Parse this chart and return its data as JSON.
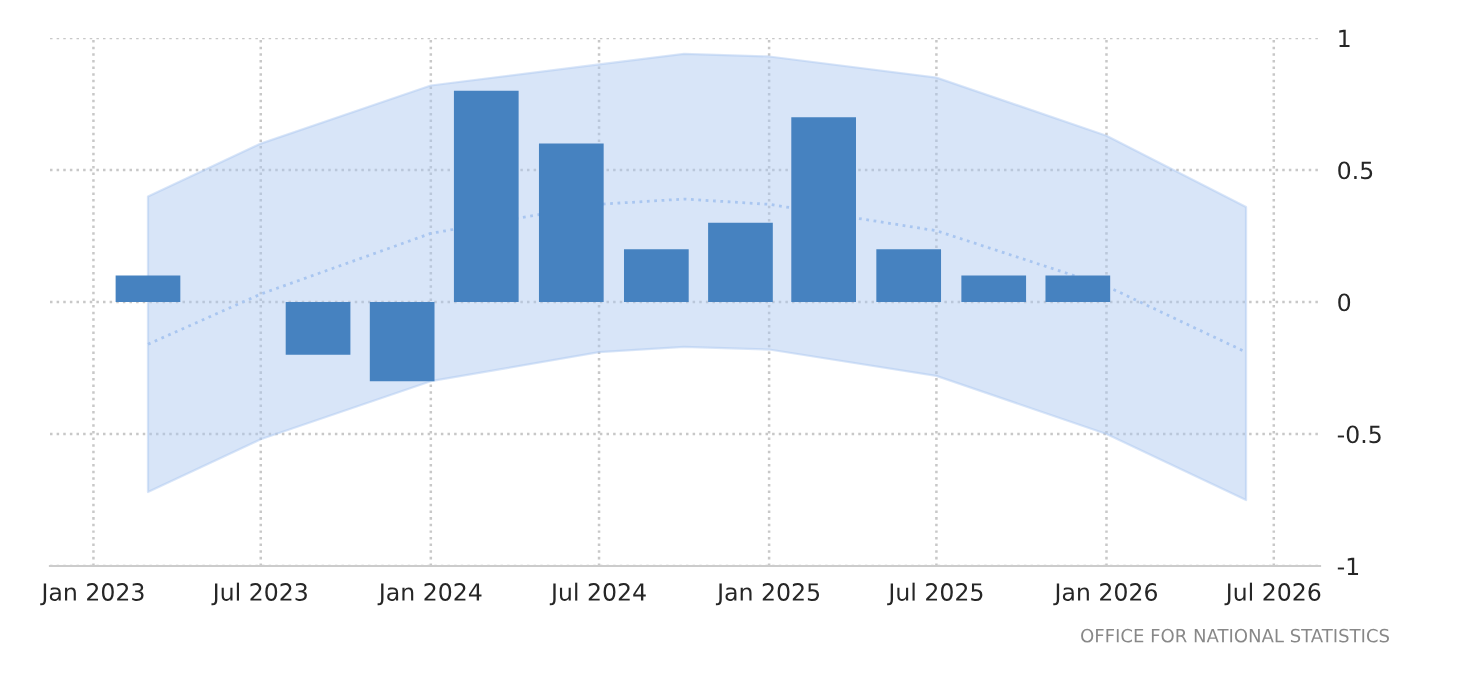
{
  "chart_data": {
    "type": "bar",
    "x": [
      "2023-03",
      "2023-06",
      "2023-09",
      "2023-12",
      "2024-03",
      "2024-06",
      "2024-09",
      "2024-12",
      "2025-03",
      "2025-06",
      "2025-09",
      "2025-12"
    ],
    "series": [
      {
        "color": "#4682c0",
        "values": [
          0.1,
          0,
          -0.2,
          -0.3,
          0.8,
          0.6,
          0.2,
          0.3,
          0.7,
          0.2,
          0.1,
          0.1
        ]
      },
      {
        "type": "line",
        "color": "#a9c6f0",
        "line_style": "dotted",
        "x": [
          "2023-03",
          "2023-07",
          "2024-01",
          "2024-07",
          "2024-10",
          "2025-01",
          "2025-07",
          "2026-01",
          "2026-06"
        ],
        "values": [
          -0.16,
          0.03,
          0.26,
          0.37,
          0.39,
          0.37,
          0.27,
          0.06,
          -0.19
        ],
        "lower": [
          -0.72,
          -0.52,
          -0.3,
          -0.19,
          -0.17,
          -0.18,
          -0.28,
          -0.5,
          -0.75
        ],
        "upper": [
          0.4,
          0.6,
          0.82,
          0.9,
          0.94,
          0.93,
          0.85,
          0.63,
          0.36
        ]
      }
    ],
    "xlim": [
      "2022-11-15",
      "2026-08-20"
    ],
    "xticks": [
      {
        "value": "2023-01",
        "label": "Jan 2023"
      },
      {
        "value": "2023-07",
        "label": "Jul 2023"
      },
      {
        "value": "2024-01",
        "label": "Jan 2024"
      },
      {
        "value": "2024-07",
        "label": "Jul 2024"
      },
      {
        "value": "2025-01",
        "label": "Jan 2025"
      },
      {
        "value": "2025-07",
        "label": "Jul 2025"
      },
      {
        "value": "2026-01",
        "label": "Jan 2026"
      },
      {
        "value": "2026-07",
        "label": "Jul 2026"
      }
    ],
    "ylim": [
      -1,
      1
    ],
    "yticks": [
      -1,
      -0.5,
      0,
      0.5,
      1
    ],
    "grid": true,
    "annotations": [
      "OFFICE FOR NATIONAL STATISTICS"
    ]
  }
}
